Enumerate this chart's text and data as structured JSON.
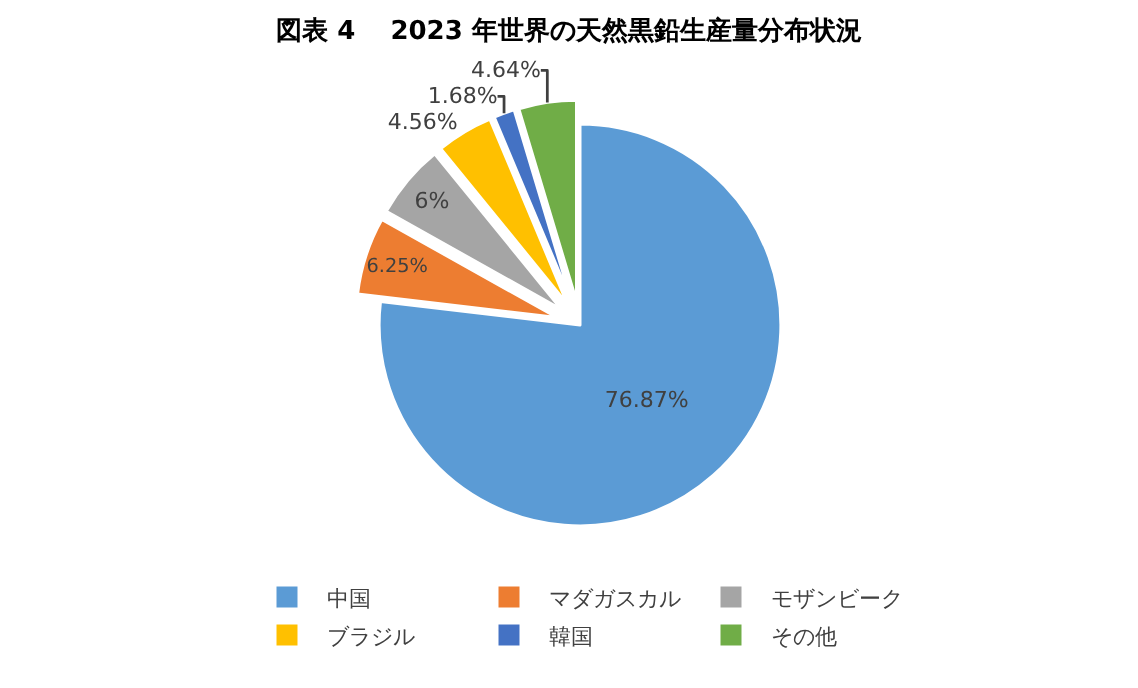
{
  "chart_data": {
    "type": "pie",
    "title": "図表 4　 2023 年世界の天然黒鉛生産量分布状況",
    "categories": [
      "中国",
      "マダガスカル",
      "モザンビーク",
      "ブラジル",
      "韓国",
      "その他"
    ],
    "values": [
      76.87,
      6.25,
      6,
      4.56,
      1.68,
      4.64
    ],
    "value_labels": [
      "76.87%",
      "6.25%",
      "6%",
      "4.56%",
      "1.68%",
      "4.64%"
    ],
    "colors": [
      "#5b9bd5",
      "#ed7d31",
      "#a5a5a5",
      "#ffc000",
      "#4472c4",
      "#70ad47"
    ],
    "legend": "bottom"
  }
}
